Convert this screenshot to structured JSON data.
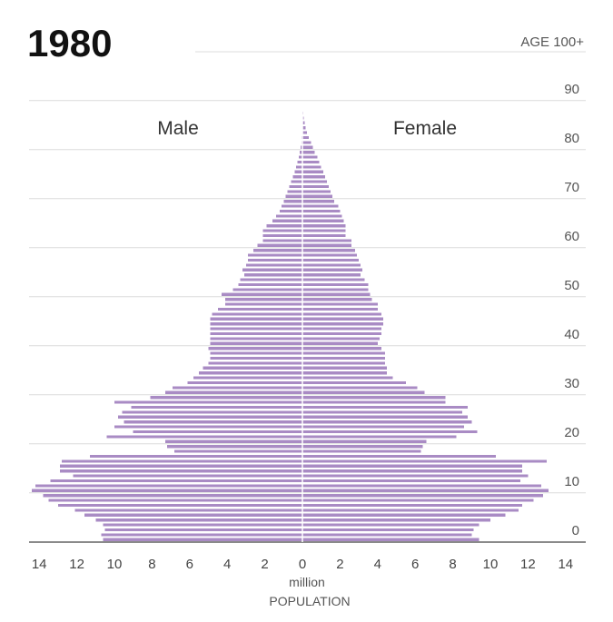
{
  "chart_data": {
    "type": "bar",
    "title": "1980",
    "male_label": "Male",
    "female_label": "Female",
    "bar_color": "#a98bc4",
    "age_top_label": "AGE 100+",
    "age_ticks": [
      0,
      10,
      20,
      30,
      40,
      50,
      60,
      70,
      80,
      90
    ],
    "x_ticks_left": [
      "14",
      "12",
      "10",
      "8",
      "6",
      "4",
      "2"
    ],
    "x_tick_center": "0",
    "x_ticks_right": [
      "2",
      "4",
      "6",
      "8",
      "10",
      "12",
      "14"
    ],
    "xlabel_unit": "million",
    "xlabel": "POPULATION",
    "xlim": [
      -15,
      15
    ],
    "ages": [
      0,
      1,
      2,
      3,
      4,
      5,
      6,
      7,
      8,
      9,
      10,
      11,
      12,
      13,
      14,
      15,
      16,
      17,
      18,
      19,
      20,
      21,
      22,
      23,
      24,
      25,
      26,
      27,
      28,
      29,
      30,
      31,
      32,
      33,
      34,
      35,
      36,
      37,
      38,
      39,
      40,
      41,
      42,
      43,
      44,
      45,
      46,
      47,
      48,
      49,
      50,
      51,
      52,
      53,
      54,
      55,
      56,
      57,
      58,
      59,
      60,
      61,
      62,
      63,
      64,
      65,
      66,
      67,
      68,
      69,
      70,
      71,
      72,
      73,
      74,
      75,
      76,
      77,
      78,
      79,
      80,
      81,
      82,
      83,
      84,
      85,
      86,
      87,
      88,
      89,
      90,
      91,
      92,
      93,
      94,
      95,
      96,
      97,
      98,
      99,
      100
    ],
    "male": [
      10.6,
      10.7,
      10.5,
      10.6,
      11.0,
      11.6,
      12.1,
      13.0,
      13.5,
      13.8,
      14.4,
      14.2,
      13.4,
      12.2,
      12.9,
      12.9,
      12.8,
      11.3,
      6.8,
      7.2,
      7.3,
      10.4,
      9.0,
      10.0,
      9.5,
      9.8,
      9.6,
      9.1,
      10.0,
      8.1,
      7.3,
      6.9,
      6.1,
      5.8,
      5.5,
      5.3,
      5.0,
      4.9,
      4.9,
      5.0,
      4.9,
      4.9,
      4.9,
      4.9,
      4.9,
      4.9,
      4.8,
      4.5,
      4.1,
      4.1,
      4.3,
      3.7,
      3.4,
      3.3,
      3.1,
      3.2,
      3.0,
      2.9,
      2.9,
      2.6,
      2.4,
      2.1,
      2.1,
      2.1,
      1.9,
      1.6,
      1.4,
      1.2,
      1.1,
      1.0,
      0.9,
      0.8,
      0.7,
      0.6,
      0.5,
      0.4,
      0.33,
      0.27,
      0.2,
      0.15,
      0.1,
      0.06,
      0.04,
      0.03,
      0.02,
      0.015,
      0.012,
      0.008,
      0.006,
      0.004,
      0.002,
      0.001,
      0,
      0,
      0,
      0,
      0,
      0,
      0,
      0,
      0
    ],
    "female": [
      9.4,
      9.0,
      9.1,
      9.4,
      10.0,
      10.8,
      11.5,
      11.7,
      12.3,
      12.8,
      13.1,
      12.7,
      11.6,
      12.0,
      11.7,
      11.7,
      13.0,
      10.3,
      6.3,
      6.4,
      6.6,
      8.2,
      9.3,
      8.6,
      9.0,
      8.8,
      8.5,
      8.8,
      7.6,
      7.6,
      6.5,
      6.1,
      5.5,
      4.8,
      4.5,
      4.5,
      4.4,
      4.4,
      4.4,
      4.2,
      4.0,
      4.1,
      4.2,
      4.2,
      4.3,
      4.3,
      4.2,
      4.0,
      4.0,
      3.7,
      3.6,
      3.5,
      3.5,
      3.3,
      3.1,
      3.2,
      3.1,
      3.0,
      2.9,
      2.8,
      2.6,
      2.6,
      2.3,
      2.3,
      2.3,
      2.2,
      2.1,
      2.0,
      1.9,
      1.7,
      1.6,
      1.5,
      1.4,
      1.3,
      1.2,
      1.1,
      1.0,
      0.9,
      0.8,
      0.65,
      0.55,
      0.45,
      0.35,
      0.25,
      0.18,
      0.12,
      0.08,
      0.05,
      0.03,
      0.02,
      0.01,
      0.005,
      0,
      0,
      0,
      0,
      0,
      0,
      0,
      0,
      0
    ]
  }
}
